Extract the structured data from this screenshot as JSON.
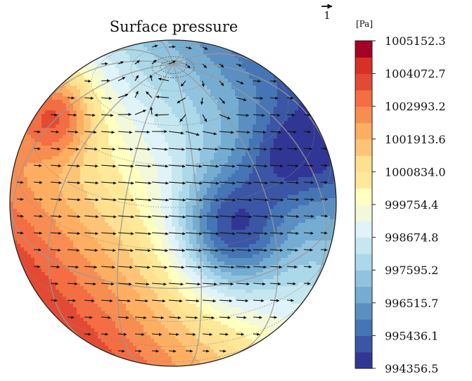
{
  "chart_data": {
    "type": "heatmap",
    "projection": "orthographic",
    "title": "Surface pressure",
    "colorbar": {
      "unit_label": "[Pa]",
      "min": 994356.5,
      "max": 1005152.3,
      "levels": 20,
      "tick_labels": [
        "1005152.3",
        "1004072.7",
        "1002993.2",
        "1001913.6",
        "1000834.0",
        "999754.4",
        "998674.8",
        "997595.2",
        "996515.7",
        "995436.1",
        "994356.5"
      ],
      "colormap": [
        "#313695",
        "#3a56a4",
        "#4575b4",
        "#5b8fc2",
        "#74add1",
        "#91c3de",
        "#abd9e9",
        "#c7e7f0",
        "#e0f3f8",
        "#f1f9da",
        "#ffffbf",
        "#fee99a",
        "#fee090",
        "#fdc478",
        "#fdae61",
        "#f88d52",
        "#f46d43",
        "#e34a33",
        "#d73027",
        "#a50026"
      ]
    },
    "quiver_key": {
      "label": "1"
    },
    "field_description": "high pressure upper-left (north-west), low pressure lower-right, smooth diagonal gradient; wind vectors flow from high to low pressure, spiralling near the visible pole",
    "grid": true
  }
}
